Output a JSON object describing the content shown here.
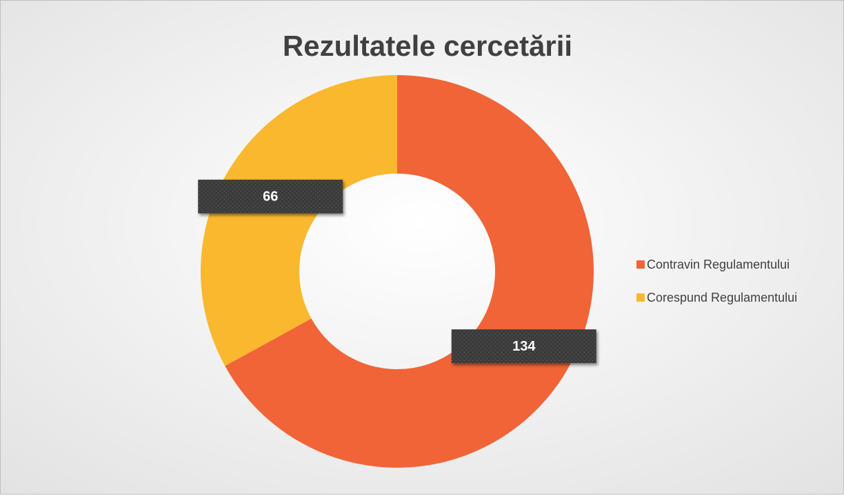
{
  "chart_data": {
    "type": "donut",
    "title": "Rezultatele cercetării",
    "categories": [
      "Contravin Regulamentului",
      "Corespund Regulamentului"
    ],
    "values": [
      134,
      66
    ],
    "colors": [
      "#f06437",
      "#fab82e"
    ],
    "legend": "right"
  }
}
